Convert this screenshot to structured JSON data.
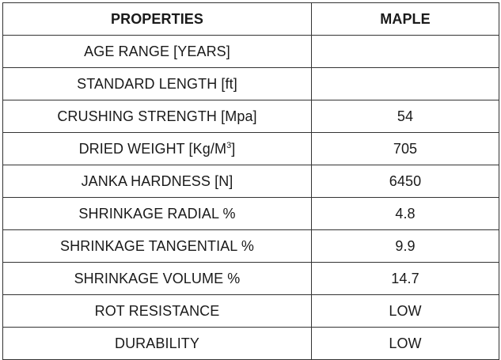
{
  "table": {
    "headers": [
      "PROPERTIES",
      "MAPLE"
    ],
    "rows": [
      {
        "property": "AGE RANGE [YEARS]",
        "value": ""
      },
      {
        "property": "STANDARD LENGTH [ft]",
        "value": ""
      },
      {
        "property": "CRUSHING STRENGTH [Mpa]",
        "value": "54"
      },
      {
        "property_prefix": "DRIED WEIGHT [Kg/M",
        "property_sup": "3",
        "property_suffix": "]",
        "value": "705"
      },
      {
        "property": "JANKA HARDNESS [N]",
        "value": "6450"
      },
      {
        "property": "SHRINKAGE RADIAL %",
        "value": "4.8"
      },
      {
        "property": "SHRINKAGE TANGENTIAL %",
        "value": "9.9"
      },
      {
        "property": "SHRINKAGE VOLUME %",
        "value": "14.7"
      },
      {
        "property": "ROT RESISTANCE",
        "value": "LOW"
      },
      {
        "property": "DURABILITY",
        "value": "LOW"
      }
    ]
  }
}
